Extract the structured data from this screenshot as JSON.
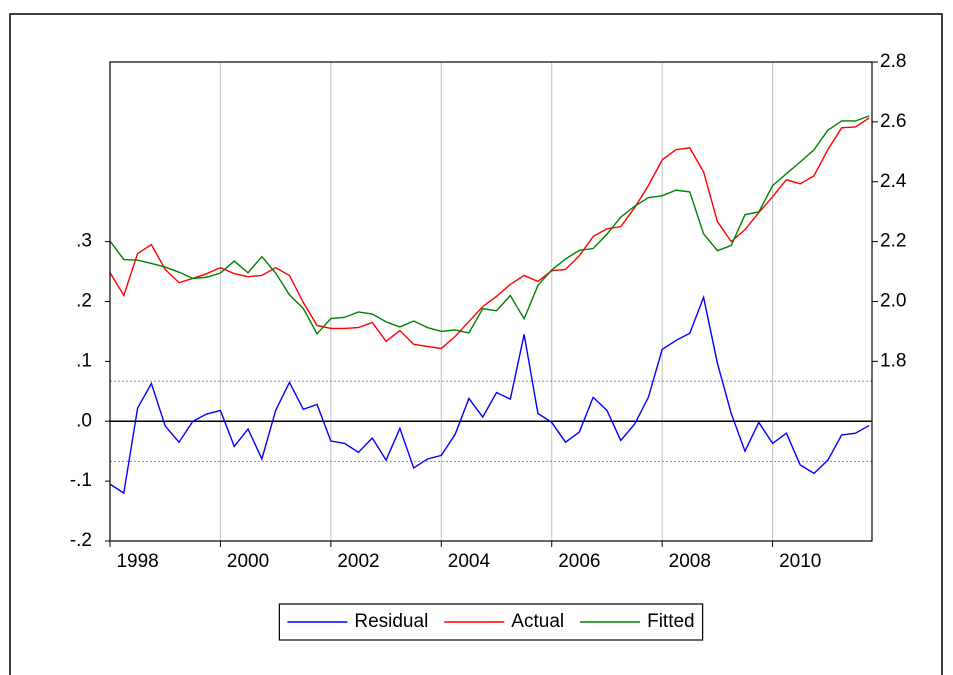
{
  "chart_data": {
    "type": "line",
    "x": [
      1998,
      1998.25,
      1998.5,
      1998.75,
      1999,
      1999.25,
      1999.5,
      1999.75,
      2000,
      2000.25,
      2000.5,
      2000.75,
      2001,
      2001.25,
      2001.5,
      2001.75,
      2002,
      2002.25,
      2002.5,
      2002.75,
      2003,
      2003.25,
      2003.5,
      2003.75,
      2004,
      2004.25,
      2004.5,
      2004.75,
      2005,
      2005.25,
      2005.5,
      2005.75,
      2006,
      2006.25,
      2006.5,
      2006.75,
      2007,
      2007.25,
      2007.5,
      2007.75,
      2008,
      2008.25,
      2008.5,
      2008.75,
      2009,
      2009.25,
      2009.5,
      2009.75,
      2010,
      2010.25,
      2010.5,
      2010.75,
      2011,
      2011.25,
      2011.5,
      2011.75
    ],
    "series": [
      {
        "name": "Residual",
        "color": "#0000ff",
        "axis": "y",
        "values": [
          -0.105,
          -0.12,
          0.022,
          0.063,
          -0.008,
          -0.035,
          0,
          0.012,
          0.018,
          -0.042,
          -0.013,
          -0.063,
          0.018,
          0.065,
          0.02,
          0.028,
          -0.033,
          -0.037,
          -0.052,
          -0.028,
          -0.065,
          -0.012,
          -0.078,
          -0.063,
          -0.057,
          -0.022,
          0.038,
          0.007,
          0.048,
          0.037,
          0.145,
          0.013,
          -0.002,
          -0.035,
          -0.018,
          0.04,
          0.018,
          -0.032,
          -0.005,
          0.04,
          0.12,
          0.135,
          0.147,
          0.207,
          0.097,
          0.013,
          -0.05,
          -0.002,
          -0.037,
          -0.02,
          -0.073,
          -0.087,
          -0.065,
          -0.023,
          -0.02,
          -0.007
        ]
      },
      {
        "name": "Actual",
        "color": "#ff0000",
        "axis": "y2",
        "values": [
          2.097,
          2.02,
          2.16,
          2.19,
          2.107,
          2.063,
          2.077,
          2.093,
          2.113,
          2.093,
          2.083,
          2.087,
          2.113,
          2.087,
          1.997,
          1.92,
          1.91,
          1.91,
          1.913,
          1.93,
          1.867,
          1.903,
          1.857,
          1.85,
          1.843,
          1.883,
          1.933,
          1.983,
          2.017,
          2.057,
          2.087,
          2.067,
          2.103,
          2.107,
          2.153,
          2.217,
          2.243,
          2.25,
          2.313,
          2.387,
          2.473,
          2.507,
          2.513,
          2.433,
          2.267,
          2.2,
          2.24,
          2.297,
          2.35,
          2.407,
          2.393,
          2.42,
          2.507,
          2.58,
          2.583,
          2.613
        ]
      },
      {
        "name": "Fitted",
        "color": "#008000",
        "axis": "y2",
        "values": [
          2.202,
          2.14,
          2.138,
          2.127,
          2.115,
          2.098,
          2.077,
          2.081,
          2.095,
          2.135,
          2.096,
          2.15,
          2.095,
          2.022,
          1.977,
          1.892,
          1.943,
          1.947,
          1.965,
          1.958,
          1.932,
          1.915,
          1.935,
          1.913,
          1.9,
          1.905,
          1.895,
          1.976,
          1.969,
          2.02,
          1.942,
          2.054,
          2.105,
          2.142,
          2.171,
          2.177,
          2.225,
          2.282,
          2.318,
          2.347,
          2.353,
          2.372,
          2.366,
          2.226,
          2.17,
          2.187,
          2.29,
          2.299,
          2.387,
          2.427,
          2.466,
          2.507,
          2.572,
          2.603,
          2.603,
          2.62
        ]
      }
    ],
    "xlim": [
      1998,
      2011.8
    ],
    "xticks": [
      1998,
      2000,
      2002,
      2004,
      2006,
      2008,
      2010
    ],
    "ylim": [
      -0.2,
      0.6
    ],
    "yticks": [
      {
        "value": 0.3,
        "label": ".3"
      },
      {
        "value": 0.2,
        "label": ".2"
      },
      {
        "value": 0.1,
        "label": ".1"
      },
      {
        "value": 0,
        "label": ".0"
      },
      {
        "value": -0.1,
        "label": "-.1"
      },
      {
        "value": -0.2,
        "label": "-.2"
      }
    ],
    "y2lim": [
      1.2,
      2.8
    ],
    "y2ticks": [
      2.8,
      2.6,
      2.4,
      2.2,
      {
        "value": 2.0,
        "label": "2.0"
      },
      1.8
    ],
    "hlines": [
      {
        "value": 0,
        "dashed": false
      },
      {
        "value": 0.067,
        "dashed": true
      },
      {
        "value": -0.067,
        "dashed": true
      }
    ],
    "grid": true,
    "legend": "bottom"
  }
}
